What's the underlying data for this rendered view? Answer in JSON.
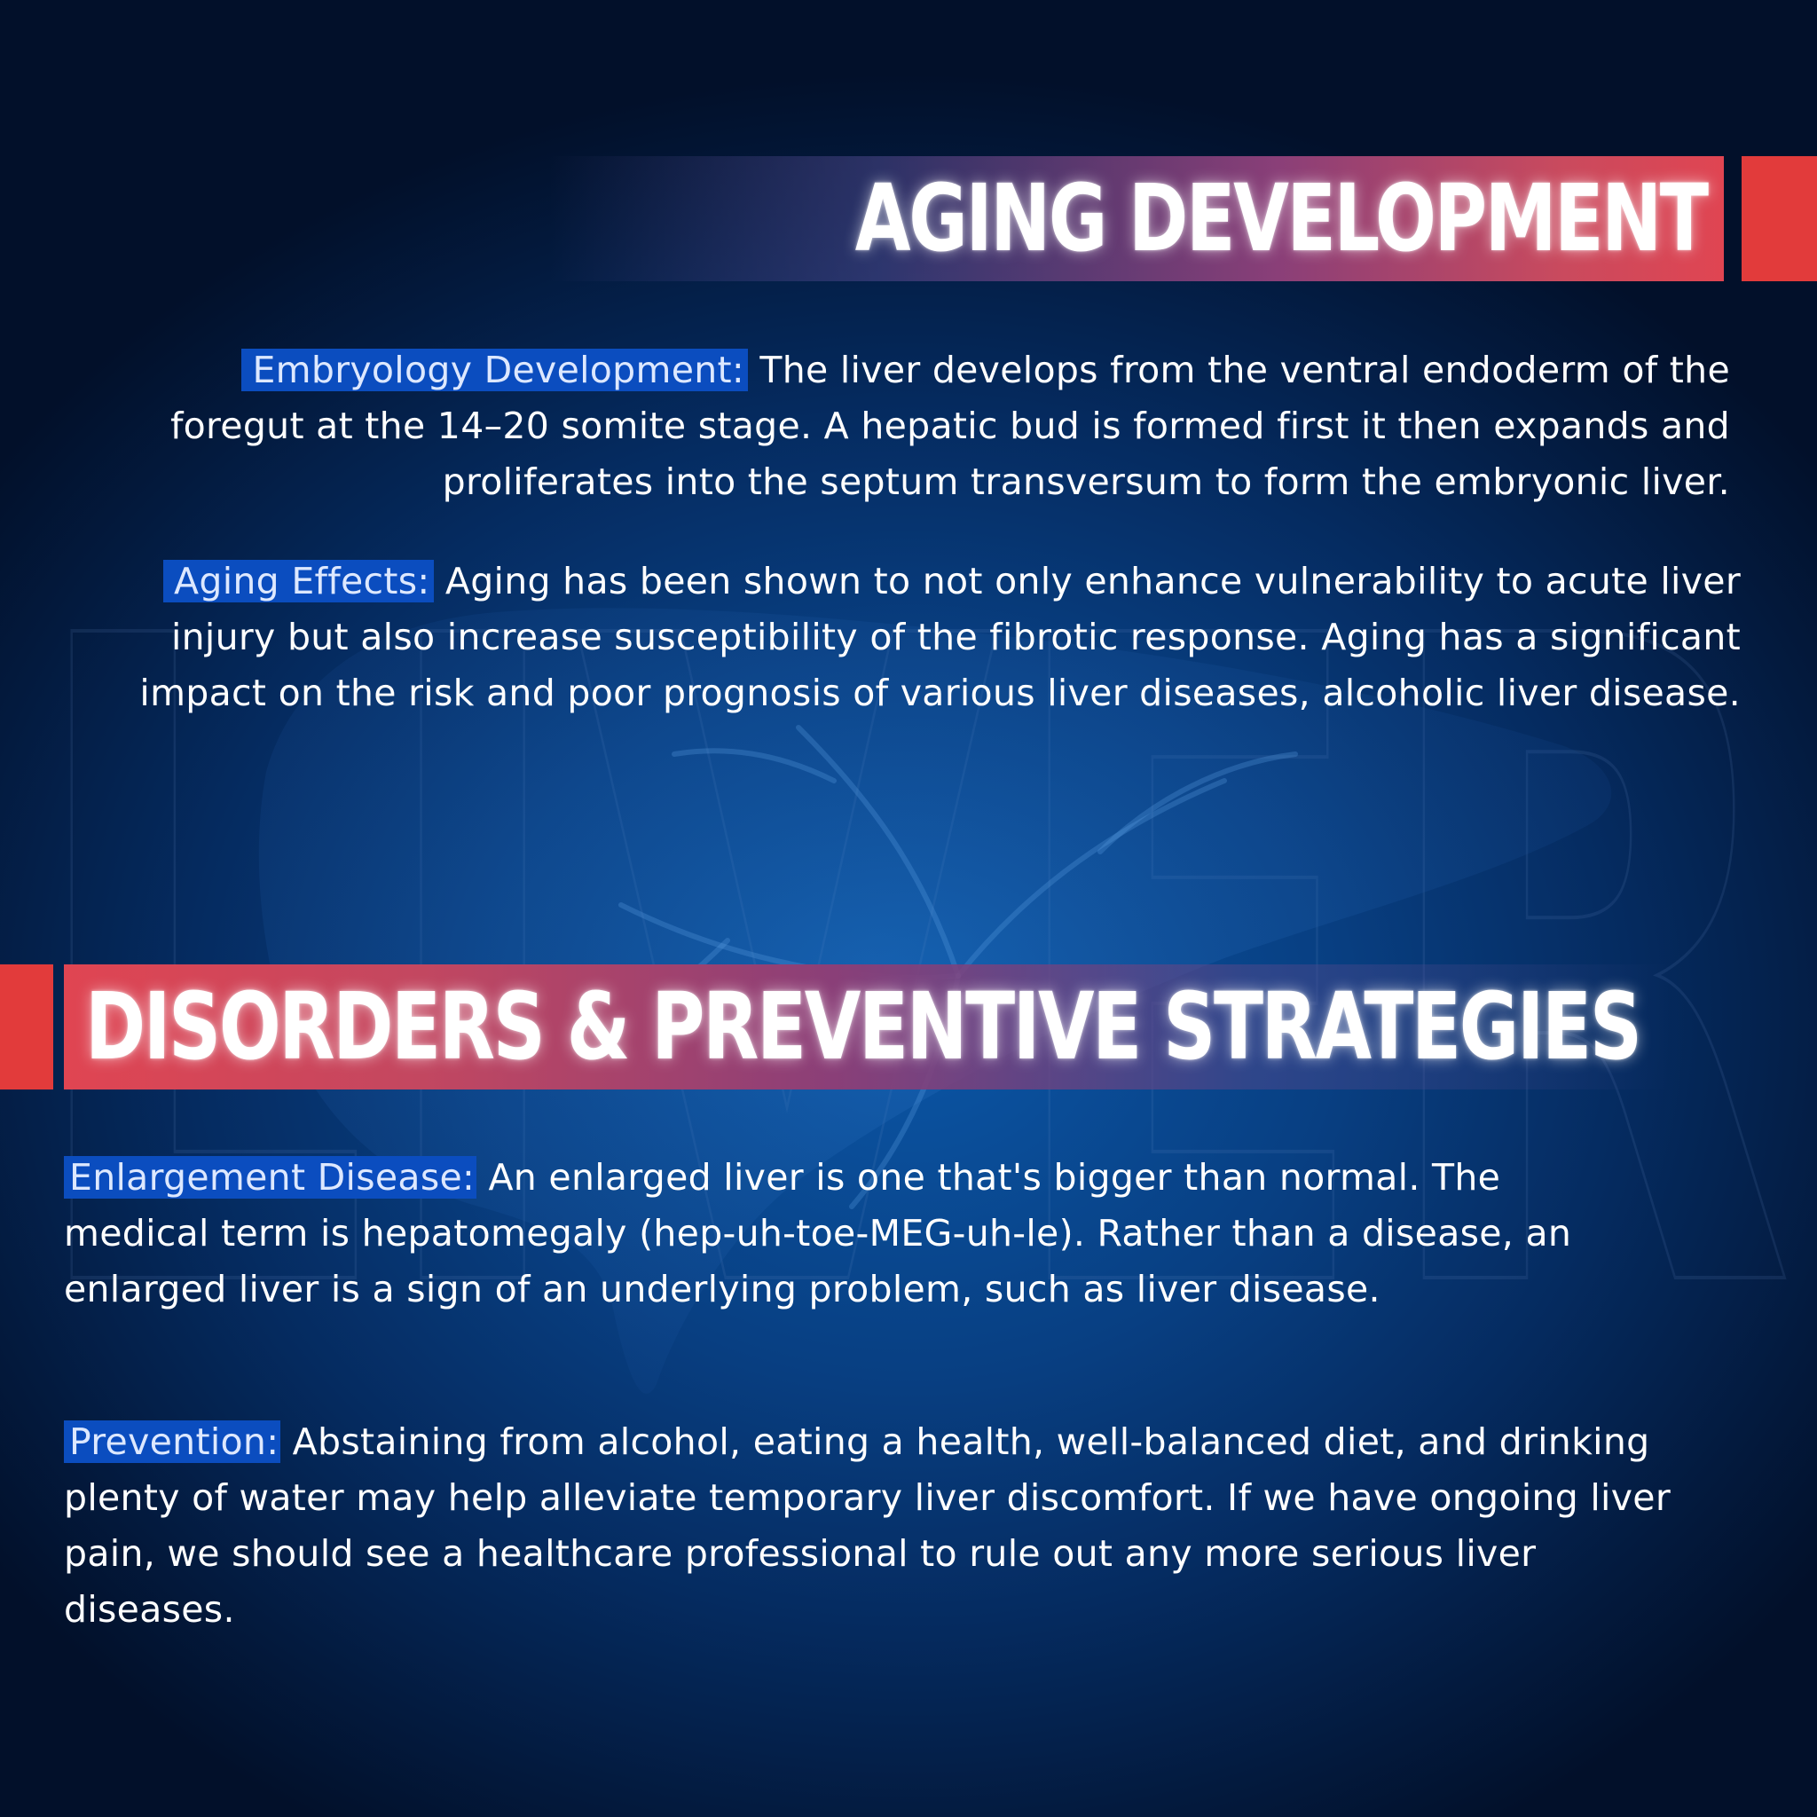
{
  "background": {
    "watermark_text": "LIVER",
    "colors": {
      "deep_navy": "#02102a",
      "mid_blue": "#083f82",
      "glow_blue": "#0b56a6"
    }
  },
  "colors": {
    "accent_red": "#e23b3b",
    "highlight_blue": "#0b4dbf",
    "banner_magenta": "#8a3f78",
    "text": "#ffffff"
  },
  "sections": {
    "aging": {
      "title": "AGING DEVELOPMENT",
      "embryology": {
        "label": "Embryology Development:",
        "text": " The liver develops from the ventral endoderm of the foregut at the 14–20 somite stage. A hepatic bud is formed first it then expands and proliferates into the septum transversum to form the embryonic liver."
      },
      "effects": {
        "label": "Aging Effects:",
        "text": " Aging has been shown to not only enhance vulnerability to acute liver injury but also increase susceptibility of the fibrotic response. Aging has a significant impact on the risk and poor prognosis of various liver diseases, alcoholic liver disease."
      }
    },
    "disorders": {
      "title": "DISORDERS & PREVENTIVE STRATEGIES",
      "enlargement": {
        "label": "Enlargement Disease:",
        "text": " An enlarged liver is one that's bigger than normal. The medical term is hepatomegaly (hep-uh-toe-MEG-uh-le). Rather than a disease, an enlarged liver is a sign of an underlying problem, such as liver disease."
      },
      "prevention": {
        "label": "Prevention:",
        "text": " Abstaining from alcohol, eating a health, well-balanced diet, and drinking plenty of water may help alleviate temporary liver discomfort. If we have ongoing liver pain, we should see a healthcare professional to rule out any more serious liver diseases."
      }
    }
  }
}
